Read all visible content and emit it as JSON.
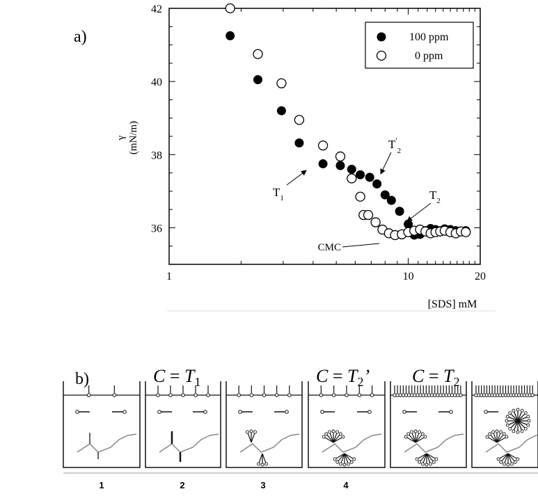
{
  "panels": {
    "a_label": "a)",
    "b_label": "b)"
  },
  "chart_data": {
    "type": "scatter",
    "title": "",
    "ylabel_symbol": "γ",
    "ylabel_units": "(mN/m)",
    "xlabel": "[SDS] mM",
    "x_scale": "log",
    "xlim": [
      1,
      20
    ],
    "ylim": [
      35,
      42
    ],
    "x_ticks": [
      1,
      10,
      20
    ],
    "y_ticks": [
      36,
      38,
      40,
      42
    ],
    "grid": false,
    "legend_position": "top-right",
    "series": [
      {
        "name": "100 ppm",
        "marker": "filled-circle",
        "x": [
          1.8,
          2.35,
          2.95,
          3.5,
          4.4,
          5.2,
          5.8,
          6.3,
          6.9,
          7.4,
          8.0,
          8.5,
          9.2,
          10.0,
          10.6,
          11.2,
          11.8,
          12.4,
          13.0,
          13.6,
          14.2,
          15.0,
          15.8,
          16.6,
          17.4
        ],
        "y": [
          41.25,
          40.05,
          39.2,
          38.32,
          37.75,
          37.7,
          37.6,
          37.45,
          37.38,
          37.2,
          36.9,
          36.75,
          36.45,
          36.1,
          35.8,
          35.82,
          35.92,
          35.98,
          35.95,
          35.92,
          35.97,
          35.95,
          35.92,
          35.9,
          35.92
        ]
      },
      {
        "name": "0 ppm",
        "marker": "open-circle",
        "x": [
          1.8,
          2.35,
          2.95,
          3.5,
          4.4,
          5.2,
          5.8,
          6.3,
          6.5,
          6.8,
          7.3,
          7.8,
          8.3,
          8.8,
          9.4,
          10.0,
          10.6,
          11.2,
          11.8,
          12.4,
          13.0,
          13.6,
          14.2,
          15.0,
          15.8,
          16.6,
          17.4
        ],
        "y": [
          42.0,
          40.75,
          39.95,
          38.95,
          38.25,
          37.95,
          37.35,
          36.85,
          36.35,
          36.35,
          36.15,
          35.95,
          35.85,
          35.8,
          35.82,
          35.88,
          35.92,
          35.95,
          35.9,
          35.85,
          35.88,
          35.9,
          35.92,
          35.88,
          35.85,
          35.9,
          35.88
        ]
      }
    ],
    "annotations": [
      {
        "text": "T",
        "sub": "1",
        "sup": "",
        "x": 4.4,
        "y": 37.75
      },
      {
        "text": "T",
        "sub": "2",
        "sup": "'",
        "x": 7.2,
        "y": 37.38
      },
      {
        "text": "T",
        "sub": "2",
        "sup": "",
        "x": 10.0,
        "y": 36.1
      },
      {
        "text": "CMC",
        "sub": "",
        "sup": "",
        "x": 8.8,
        "y": 35.8
      }
    ]
  },
  "panel_b": {
    "conditions": [
      {
        "var": "C",
        "eq": " = ",
        "t": "T",
        "sub": "1",
        "prime": ""
      },
      {
        "var": "C",
        "eq": " = ",
        "t": "T",
        "sub": "2",
        "prime": "’"
      },
      {
        "var": "C",
        "eq": " = ",
        "t": "T",
        "sub": "2",
        "prime": ""
      }
    ],
    "box_labels": [
      "1",
      "2",
      "3",
      "4"
    ]
  }
}
